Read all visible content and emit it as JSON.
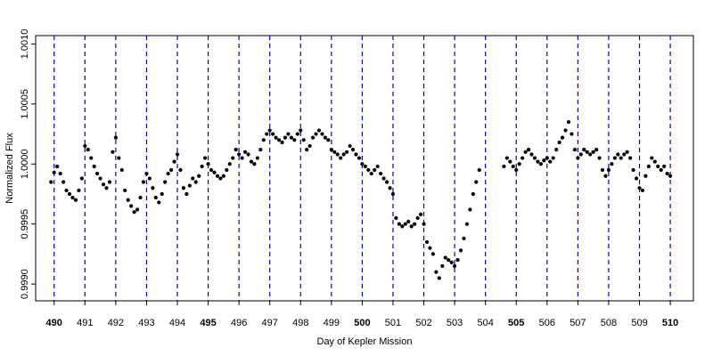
{
  "chart_data": {
    "type": "scatter",
    "title": "",
    "xlabel": "Day of Kepler Mission",
    "ylabel": "Normalized Flux",
    "xlim": [
      489.4,
      510.75
    ],
    "ylim": [
      0.99886,
      1.00107
    ],
    "xticks": [
      490,
      491,
      492,
      493,
      494,
      495,
      496,
      497,
      498,
      499,
      500,
      501,
      502,
      503,
      504,
      505,
      506,
      507,
      508,
      509,
      510
    ],
    "xtick_labels": [
      "490",
      "491",
      "492",
      "493",
      "494",
      "495",
      "496",
      "497",
      "498",
      "499",
      "500",
      "501",
      "502",
      "503",
      "504",
      "505",
      "506",
      "507",
      "508",
      "509",
      "510"
    ],
    "bold_xticks": [
      "490",
      "495",
      "500",
      "505",
      "510"
    ],
    "yticks": [
      0.999,
      0.9995,
      1.0,
      1.0005,
      1.001
    ],
    "ytick_labels": [
      "0.9990",
      "0.9995",
      "1.0000",
      "1.0005",
      "1.0010"
    ],
    "vlines": [
      490,
      491,
      492,
      493,
      494,
      495,
      496,
      497,
      498,
      499,
      500,
      501,
      502,
      503,
      504,
      505,
      506,
      507,
      508,
      509,
      510
    ],
    "vline_color": "#0000cc",
    "point_color": "#000000",
    "grid": false,
    "series": [
      {
        "values": [
          [
            489.9,
            0.99985
          ],
          [
            490.0,
            0.99993
          ],
          [
            490.1,
            0.99998
          ],
          [
            490.2,
            0.99992
          ],
          [
            490.3,
            0.99985
          ],
          [
            490.4,
            0.99978
          ],
          [
            490.5,
            0.99975
          ],
          [
            490.6,
            0.99972
          ],
          [
            490.7,
            0.9997
          ],
          [
            490.8,
            0.99978
          ],
          [
            490.9,
            0.99988
          ],
          [
            491.0,
            1.00015
          ],
          [
            491.1,
            1.00012
          ],
          [
            491.2,
            1.00005
          ],
          [
            491.3,
            0.99998
          ],
          [
            491.4,
            0.99992
          ],
          [
            491.5,
            0.99988
          ],
          [
            491.6,
            0.99983
          ],
          [
            491.7,
            0.9998
          ],
          [
            491.8,
            0.99985
          ],
          [
            491.9,
            1.0001
          ],
          [
            492.0,
            1.00022
          ],
          [
            492.1,
            1.00005
          ],
          [
            492.2,
            0.99995
          ],
          [
            492.3,
            0.99978
          ],
          [
            492.4,
            0.9997
          ],
          [
            492.5,
            0.99965
          ],
          [
            492.6,
            0.9996
          ],
          [
            492.7,
            0.99962
          ],
          [
            492.8,
            0.99972
          ],
          [
            492.9,
            0.99985
          ],
          [
            493.0,
            0.99992
          ],
          [
            493.1,
            0.99988
          ],
          [
            493.2,
            0.9998
          ],
          [
            493.3,
            0.99972
          ],
          [
            493.4,
            0.99968
          ],
          [
            493.5,
            0.99975
          ],
          [
            493.6,
            0.99985
          ],
          [
            493.7,
            0.99992
          ],
          [
            493.8,
            0.99995
          ],
          [
            493.9,
            1.00002
          ],
          [
            494.0,
            1.00008
          ],
          [
            494.1,
            0.99995
          ],
          [
            494.2,
            0.9998
          ],
          [
            494.3,
            0.99975
          ],
          [
            494.4,
            0.99982
          ],
          [
            494.5,
            0.99988
          ],
          [
            494.6,
            0.99985
          ],
          [
            494.7,
            0.9999
          ],
          [
            494.8,
            0.99998
          ],
          [
            494.9,
            1.00005
          ],
          [
            495.0,
            1.0
          ],
          [
            495.1,
            0.99995
          ],
          [
            495.2,
            0.99993
          ],
          [
            495.3,
            0.9999
          ],
          [
            495.4,
            0.99988
          ],
          [
            495.5,
            0.9999
          ],
          [
            495.6,
            0.99995
          ],
          [
            495.7,
            1.0
          ],
          [
            495.8,
            1.00005
          ],
          [
            495.9,
            1.00012
          ],
          [
            496.0,
            1.00008
          ],
          [
            496.1,
            1.00005
          ],
          [
            496.2,
            1.0001
          ],
          [
            496.3,
            1.00008
          ],
          [
            496.4,
            1.00002
          ],
          [
            496.5,
            1.0
          ],
          [
            496.6,
            1.00005
          ],
          [
            496.7,
            1.00012
          ],
          [
            496.8,
            1.0002
          ],
          [
            496.9,
            1.00025
          ],
          [
            497.0,
            1.00028
          ],
          [
            497.1,
            1.00025
          ],
          [
            497.2,
            1.00022
          ],
          [
            497.3,
            1.0002
          ],
          [
            497.4,
            1.00018
          ],
          [
            497.5,
            1.00022
          ],
          [
            497.6,
            1.00025
          ],
          [
            497.7,
            1.00022
          ],
          [
            497.8,
            1.0002
          ],
          [
            497.9,
            1.00025
          ],
          [
            498.0,
            1.00028
          ],
          [
            498.1,
            1.0002
          ],
          [
            498.2,
            1.00012
          ],
          [
            498.3,
            1.00015
          ],
          [
            498.4,
            1.00022
          ],
          [
            498.5,
            1.00025
          ],
          [
            498.6,
            1.00028
          ],
          [
            498.7,
            1.00025
          ],
          [
            498.8,
            1.00022
          ],
          [
            498.9,
            1.0002
          ],
          [
            499.0,
            1.00012
          ],
          [
            499.1,
            1.0001
          ],
          [
            499.2,
            1.00008
          ],
          [
            499.3,
            1.00005
          ],
          [
            499.4,
            1.00008
          ],
          [
            499.5,
            1.0001
          ],
          [
            499.6,
            1.00015
          ],
          [
            499.7,
            1.00012
          ],
          [
            499.8,
            1.00008
          ],
          [
            499.9,
            1.00005
          ],
          [
            500.0,
            1.0
          ],
          [
            500.1,
            0.99998
          ],
          [
            500.2,
            0.99995
          ],
          [
            500.3,
            0.99992
          ],
          [
            500.4,
            0.99995
          ],
          [
            500.5,
            0.99998
          ],
          [
            500.6,
            0.99992
          ],
          [
            500.7,
            0.99988
          ],
          [
            500.8,
            0.99985
          ],
          [
            500.9,
            0.9998
          ],
          [
            501.0,
            0.99975
          ],
          [
            501.1,
            0.99955
          ],
          [
            501.2,
            0.9995
          ],
          [
            501.3,
            0.99948
          ],
          [
            501.4,
            0.9995
          ],
          [
            501.5,
            0.99952
          ],
          [
            501.6,
            0.99948
          ],
          [
            501.7,
            0.9995
          ],
          [
            501.8,
            0.99955
          ],
          [
            501.9,
            0.99958
          ],
          [
            502.0,
            0.9995
          ],
          [
            502.1,
            0.99935
          ],
          [
            502.2,
            0.9993
          ],
          [
            502.3,
            0.99925
          ],
          [
            502.4,
            0.9991
          ],
          [
            502.5,
            0.99905
          ],
          [
            502.6,
            0.99915
          ],
          [
            502.7,
            0.99922
          ],
          [
            502.8,
            0.9992
          ],
          [
            502.9,
            0.99918
          ],
          [
            503.0,
            0.99915
          ],
          [
            503.1,
            0.9992
          ],
          [
            503.2,
            0.99928
          ],
          [
            503.3,
            0.99938
          ],
          [
            503.4,
            0.9995
          ],
          [
            503.5,
            0.99962
          ],
          [
            503.6,
            0.99975
          ],
          [
            503.7,
            0.99985
          ],
          [
            503.8,
            0.99995
          ],
          [
            504.6,
            0.99998
          ],
          [
            504.7,
            1.00005
          ],
          [
            504.8,
            1.00002
          ],
          [
            504.9,
            0.99998
          ],
          [
            505.0,
            0.99995
          ],
          [
            505.1,
            1.0
          ],
          [
            505.2,
            1.00005
          ],
          [
            505.3,
            1.0001
          ],
          [
            505.4,
            1.00012
          ],
          [
            505.5,
            1.00008
          ],
          [
            505.6,
            1.00005
          ],
          [
            505.7,
            1.00002
          ],
          [
            505.8,
            1.0
          ],
          [
            505.9,
            1.00003
          ],
          [
            506.0,
            1.00005
          ],
          [
            506.1,
            1.00002
          ],
          [
            506.2,
            1.00005
          ],
          [
            506.3,
            1.00012
          ],
          [
            506.4,
            1.00018
          ],
          [
            506.5,
            1.00022
          ],
          [
            506.6,
            1.00028
          ],
          [
            506.7,
            1.00035
          ],
          [
            506.8,
            1.00025
          ],
          [
            506.9,
            1.00012
          ],
          [
            507.0,
            1.00005
          ],
          [
            507.1,
            1.00008
          ],
          [
            507.2,
            1.00012
          ],
          [
            507.3,
            1.0001
          ],
          [
            507.4,
            1.00008
          ],
          [
            507.5,
            1.0001
          ],
          [
            507.6,
            1.00012
          ],
          [
            507.7,
            1.00005
          ],
          [
            507.8,
            0.99995
          ],
          [
            507.9,
            0.9999
          ],
          [
            508.0,
            0.99995
          ],
          [
            508.1,
            1.0
          ],
          [
            508.2,
            1.00005
          ],
          [
            508.3,
            1.00008
          ],
          [
            508.4,
            1.00005
          ],
          [
            508.5,
            1.00008
          ],
          [
            508.6,
            1.0001
          ],
          [
            508.7,
            1.00005
          ],
          [
            508.8,
            0.99995
          ],
          [
            508.9,
            0.99988
          ],
          [
            509.0,
            0.9998
          ],
          [
            509.1,
            0.99978
          ],
          [
            509.2,
            0.9999
          ],
          [
            509.3,
            0.99998
          ],
          [
            509.4,
            1.00005
          ],
          [
            509.5,
            1.00002
          ],
          [
            509.6,
            0.99998
          ],
          [
            509.7,
            0.99995
          ],
          [
            509.8,
            0.99998
          ],
          [
            509.9,
            0.99992
          ],
          [
            510.0,
            0.9999
          ]
        ]
      }
    ]
  }
}
